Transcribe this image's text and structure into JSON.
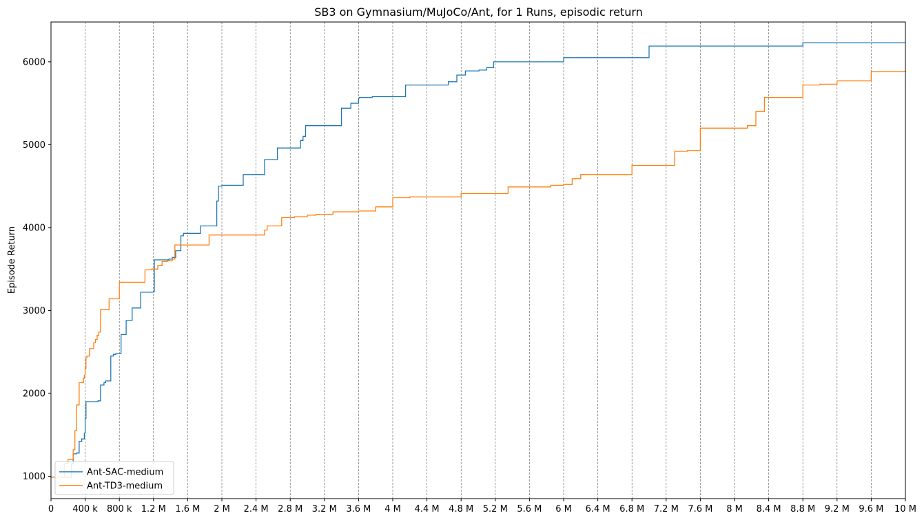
{
  "chart_data": {
    "type": "line",
    "title": "SB3 on Gymnasium/MuJoCo/Ant, for 1 Runs, episodic return",
    "xlabel": "",
    "ylabel": "Episode Return",
    "xlim": [
      0,
      10000000
    ],
    "ylim": [
      730,
      6480
    ],
    "grid": "vertical dashed",
    "legend_placement": "lower-left",
    "x_ticks": [
      {
        "value": 0,
        "label": "0"
      },
      {
        "value": 400000,
        "label": "400 k"
      },
      {
        "value": 800000,
        "label": "800 k"
      },
      {
        "value": 1200000,
        "label": "1.2 M"
      },
      {
        "value": 1600000,
        "label": "1.6 M"
      },
      {
        "value": 2000000,
        "label": "2 M"
      },
      {
        "value": 2400000,
        "label": "2.4 M"
      },
      {
        "value": 2800000,
        "label": "2.8 M"
      },
      {
        "value": 3200000,
        "label": "3.2 M"
      },
      {
        "value": 3600000,
        "label": "3.6 M"
      },
      {
        "value": 4000000,
        "label": "4 M"
      },
      {
        "value": 4400000,
        "label": "4.4 M"
      },
      {
        "value": 4800000,
        "label": "4.8 M"
      },
      {
        "value": 5200000,
        "label": "5.2 M"
      },
      {
        "value": 5600000,
        "label": "5.6 M"
      },
      {
        "value": 6000000,
        "label": "6 M"
      },
      {
        "value": 6400000,
        "label": "6.4 M"
      },
      {
        "value": 6800000,
        "label": "6.8 M"
      },
      {
        "value": 7200000,
        "label": "7.2 M"
      },
      {
        "value": 7600000,
        "label": "7.6 M"
      },
      {
        "value": 8000000,
        "label": "8 M"
      },
      {
        "value": 8400000,
        "label": "8.4 M"
      },
      {
        "value": 8800000,
        "label": "8.8 M"
      },
      {
        "value": 9200000,
        "label": "9.2 M"
      },
      {
        "value": 9600000,
        "label": "9.6 M"
      },
      {
        "value": 10000000,
        "label": "10 M"
      }
    ],
    "y_ticks": [
      {
        "value": 1000,
        "label": "1000"
      },
      {
        "value": 2000,
        "label": "2000"
      },
      {
        "value": 3000,
        "label": "3000"
      },
      {
        "value": 4000,
        "label": "4000"
      },
      {
        "value": 5000,
        "label": "5000"
      },
      {
        "value": 6000,
        "label": "6000"
      }
    ],
    "series": [
      {
        "name": "Ant-SAC-medium",
        "color": "#1f77b4",
        "x": [
          0,
          100000,
          180000,
          240000,
          260000,
          300000,
          330000,
          360000,
          390000,
          400000,
          410000,
          550000,
          580000,
          620000,
          640000,
          700000,
          730000,
          760000,
          820000,
          880000,
          950000,
          1050000,
          1200000,
          1210000,
          1300000,
          1380000,
          1420000,
          1460000,
          1520000,
          1550000,
          1750000,
          1940000,
          1960000,
          2000000,
          2250000,
          2500000,
          2650000,
          2920000,
          2950000,
          2980000,
          3400000,
          3510000,
          3600000,
          3610000,
          3760000,
          4150000,
          4650000,
          4750000,
          4850000,
          5010000,
          5100000,
          5180000,
          6000000,
          7000000,
          8750000,
          8800000,
          10000000
        ],
        "y": [
          990,
          990,
          990,
          1150,
          1270,
          1280,
          1420,
          1450,
          1520,
          1700,
          1900,
          1910,
          2100,
          2130,
          2150,
          2450,
          2470,
          2480,
          2710,
          2880,
          3030,
          3220,
          3230,
          3610,
          3610,
          3620,
          3640,
          3720,
          3900,
          3930,
          4020,
          4320,
          4500,
          4510,
          4640,
          4820,
          4960,
          5050,
          5100,
          5230,
          5440,
          5500,
          5560,
          5570,
          5580,
          5720,
          5760,
          5840,
          5890,
          5900,
          5930,
          6000,
          6050,
          6190,
          6190,
          6230,
          6230
        ]
      },
      {
        "name": "Ant-TD3-medium",
        "color": "#ff7f0e",
        "x": [
          0,
          80000,
          120000,
          160000,
          200000,
          260000,
          280000,
          300000,
          330000,
          380000,
          390000,
          400000,
          410000,
          420000,
          450000,
          500000,
          520000,
          540000,
          560000,
          580000,
          600000,
          620000,
          680000,
          720000,
          800000,
          900000,
          1100000,
          1130000,
          1180000,
          1250000,
          1300000,
          1360000,
          1420000,
          1450000,
          1600000,
          1850000,
          2200000,
          2500000,
          2530000,
          2600000,
          2700000,
          2850000,
          3000000,
          3060000,
          3100000,
          3300000,
          3600000,
          3700000,
          3800000,
          4000000,
          4200000,
          4800000,
          5350000,
          5500000,
          5850000,
          6000000,
          6100000,
          6200000,
          6500000,
          6800000,
          7250000,
          7300000,
          7450000,
          7600000,
          8100000,
          8150000,
          8250000,
          8350000,
          8700000,
          8800000,
          9000000,
          9200000,
          9450000,
          9600000,
          9800000,
          10000000
        ],
        "y": [
          990,
          990,
          990,
          1150,
          1200,
          1320,
          1550,
          1860,
          2130,
          2180,
          2220,
          2300,
          2430,
          2450,
          2540,
          2610,
          2650,
          2700,
          2740,
          3010,
          3010,
          3010,
          3140,
          3140,
          3340,
          3340,
          3490,
          3490,
          3500,
          3540,
          3590,
          3600,
          3620,
          3790,
          3790,
          3910,
          3910,
          3970,
          4020,
          4020,
          4120,
          4130,
          4150,
          4150,
          4160,
          4190,
          4200,
          4200,
          4250,
          4360,
          4370,
          4410,
          4490,
          4490,
          4510,
          4520,
          4590,
          4640,
          4640,
          4750,
          4750,
          4920,
          4930,
          5200,
          5200,
          5230,
          5400,
          5570,
          5570,
          5720,
          5730,
          5770,
          5770,
          5880,
          5880,
          5900
        ]
      }
    ]
  }
}
